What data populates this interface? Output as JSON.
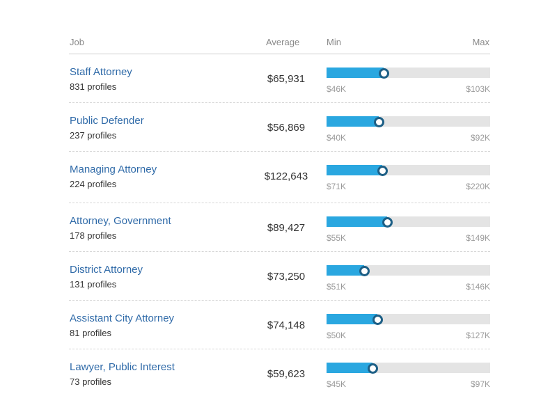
{
  "header": {
    "job": "Job",
    "average": "Average",
    "min": "Min",
    "max": "Max"
  },
  "rows": [
    {
      "title": "Staff Attorney",
      "profiles": "831 profiles",
      "average": "$65,931",
      "min": "$46K",
      "max": "$103K",
      "position": 0.35
    },
    {
      "title": "Public Defender",
      "profiles": "237 profiles",
      "average": "$56,869",
      "min": "$40K",
      "max": "$92K",
      "position": 0.32
    },
    {
      "title": "Managing Attorney",
      "profiles": "224 profiles",
      "average": "$122,643",
      "min": "$71K",
      "max": "$220K",
      "position": 0.34
    },
    {
      "title": "Attorney, Government",
      "profiles": "178 profiles",
      "average": "$89,427",
      "min": "$55K",
      "max": "$149K",
      "position": 0.37
    },
    {
      "title": "District Attorney",
      "profiles": "131 profiles",
      "average": "$73,250",
      "min": "$51K",
      "max": "$146K",
      "position": 0.23
    },
    {
      "title": "Assistant City Attorney",
      "profiles": "81 profiles",
      "average": "$74,148",
      "min": "$50K",
      "max": "$127K",
      "position": 0.31
    },
    {
      "title": "Lawyer, Public Interest",
      "profiles": "73 profiles",
      "average": "$59,623",
      "min": "$45K",
      "max": "$97K",
      "position": 0.28
    }
  ],
  "colors": {
    "link": "#2f6aa8",
    "bar_fill": "#2aa7e0",
    "bar_track": "#e4e4e4",
    "marker_border": "#1d5f86"
  }
}
